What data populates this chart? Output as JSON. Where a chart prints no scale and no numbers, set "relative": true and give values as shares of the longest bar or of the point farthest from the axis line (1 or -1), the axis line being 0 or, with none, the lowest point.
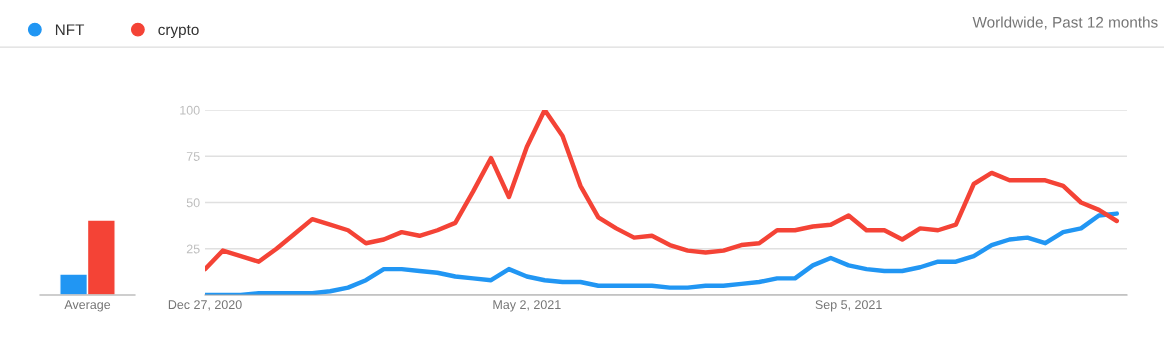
{
  "chart_data": [
    {
      "type": "bar",
      "relative": true,
      "categories": [
        "Average"
      ],
      "grid": false,
      "series": [
        {
          "color": "#2196f3",
          "values": [
            0.28
          ]
        },
        {
          "color": "#f44336",
          "values": [
            1
          ]
        }
      ]
    },
    {
      "type": "line",
      "subtitle": "Worldwide, Past 12 months",
      "legend": "top left",
      "grid": "y",
      "marker": "none",
      "line_style": "solid",
      "x": [
        "2020-12-27",
        "2021-01-03",
        "2021-01-10",
        "2021-01-17",
        "2021-01-24",
        "2021-01-31",
        "2021-02-07",
        "2021-02-14",
        "2021-02-21",
        "2021-02-28",
        "2021-03-07",
        "2021-03-14",
        "2021-03-21",
        "2021-03-28",
        "2021-04-04",
        "2021-04-11",
        "2021-04-18",
        "2021-04-25",
        "2021-05-02",
        "2021-05-09",
        "2021-05-16",
        "2021-05-23",
        "2021-05-30",
        "2021-06-06",
        "2021-06-13",
        "2021-06-20",
        "2021-06-27",
        "2021-07-04",
        "2021-07-11",
        "2021-07-18",
        "2021-07-25",
        "2021-08-01",
        "2021-08-08",
        "2021-08-15",
        "2021-08-22",
        "2021-08-29",
        "2021-09-05",
        "2021-09-12",
        "2021-09-19",
        "2021-09-26",
        "2021-10-03",
        "2021-10-10",
        "2021-10-17",
        "2021-10-24",
        "2021-10-31",
        "2021-11-07",
        "2021-11-14",
        "2021-11-21",
        "2021-11-28",
        "2021-12-05",
        "2021-12-12",
        "2021-12-19"
      ],
      "xlim": [
        "2020-12-27",
        "2021-12-23"
      ],
      "xticks": [
        {
          "value": "2020-12-27",
          "label": "Dec 27, 2020"
        },
        {
          "value": "2021-05-02",
          "label": "May 2, 2021"
        },
        {
          "value": "2021-09-05",
          "label": "Sep 5, 2021"
        }
      ],
      "ylim": [
        0,
        100
      ],
      "yticks": [
        {
          "value": 0,
          "label": null
        },
        25,
        50,
        75,
        100
      ],
      "series": [
        {
          "name": "NFT",
          "color": "#2196f3",
          "values": [
            0,
            0,
            0,
            1,
            1,
            1,
            1,
            2,
            4,
            8,
            14,
            14,
            13,
            12,
            10,
            9,
            8,
            14,
            10,
            8,
            7,
            7,
            5,
            5,
            5,
            5,
            4,
            4,
            5,
            5,
            6,
            7,
            9,
            9,
            16,
            20,
            16,
            14,
            13,
            13,
            15,
            18,
            18,
            21,
            27,
            30,
            31,
            28,
            34,
            36,
            43,
            44
          ]
        },
        {
          "name": "crypto",
          "color": "#f44336",
          "values": [
            14,
            24,
            21,
            18,
            25,
            33,
            41,
            38,
            35,
            28,
            30,
            34,
            32,
            35,
            39,
            56,
            74,
            53,
            80,
            100,
            86,
            59,
            42,
            36,
            31,
            32,
            27,
            24,
            23,
            24,
            27,
            28,
            35,
            35,
            37,
            38,
            43,
            35,
            35,
            30,
            36,
            35,
            38,
            60,
            66,
            62,
            62,
            62,
            59,
            50,
            46,
            40
          ]
        }
      ]
    }
  ]
}
